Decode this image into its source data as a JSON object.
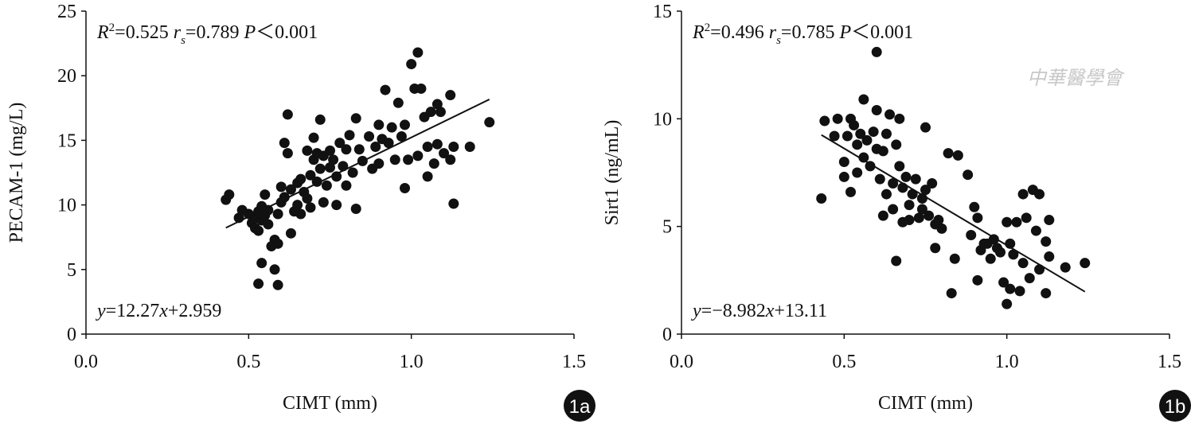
{
  "chart_data": [
    {
      "type": "scatter",
      "xlabel": "CIMT (mm)",
      "ylabel": "PECAM-1 (mg/L)",
      "panel_label": "1a",
      "color": "#111111",
      "stats": [
        "R",
        "2",
        "=0.525 ",
        "r",
        "s",
        "=0.789 ",
        "P",
        "＜0.001"
      ],
      "equation": [
        "y",
        "=12.27",
        "x",
        "+2.959"
      ],
      "fit_line": {
        "x": [
          0.43,
          1.24
        ],
        "y": [
          8.23,
          18.17
        ]
      },
      "xlim": [
        0,
        1.5
      ],
      "ylim": [
        0,
        25
      ],
      "xticks": [
        {
          "value": 0,
          "label": "0.0"
        },
        0.5,
        {
          "value": 1,
          "label": "1.0"
        },
        1.5
      ],
      "yticks": [
        0,
        5,
        10,
        15,
        20,
        25
      ],
      "x": [
        0.43,
        0.44,
        0.47,
        0.48,
        0.5,
        0.51,
        0.52,
        0.52,
        0.53,
        0.53,
        0.54,
        0.54,
        0.55,
        0.55,
        0.56,
        0.56,
        0.57,
        0.58,
        0.58,
        0.53,
        0.54,
        0.59,
        0.59,
        0.59,
        0.6,
        0.6,
        0.61,
        0.61,
        0.62,
        0.62,
        0.63,
        0.63,
        0.64,
        0.65,
        0.65,
        0.66,
        0.66,
        0.67,
        0.68,
        0.68,
        0.69,
        0.69,
        0.7,
        0.7,
        0.71,
        0.71,
        0.72,
        0.72,
        0.73,
        0.73,
        0.74,
        0.75,
        0.75,
        0.76,
        0.77,
        0.77,
        0.78,
        0.79,
        0.8,
        0.8,
        0.81,
        0.82,
        0.83,
        0.83,
        0.84,
        0.85,
        0.87,
        0.88,
        0.89,
        0.9,
        0.9,
        0.91,
        0.92,
        0.93,
        0.94,
        0.95,
        0.96,
        0.97,
        0.98,
        0.98,
        0.99,
        1.0,
        1.01,
        1.02,
        1.02,
        1.03,
        1.04,
        1.05,
        1.05,
        1.06,
        1.07,
        1.08,
        1.08,
        1.09,
        1.1,
        1.12,
        1.12,
        1.13,
        1.13,
        1.18,
        1.24
      ],
      "values": [
        10.4,
        10.8,
        9.0,
        9.6,
        9.3,
        8.6,
        8.2,
        9.0,
        8.0,
        9.5,
        8.8,
        9.9,
        9.2,
        10.8,
        8.5,
        9.6,
        6.8,
        7.3,
        5.0,
        3.9,
        5.5,
        3.8,
        7.0,
        9.3,
        10.2,
        11.4,
        10.6,
        14.8,
        17.0,
        14.0,
        11.2,
        7.8,
        9.5,
        11.7,
        10.0,
        12.0,
        9.3,
        11.0,
        10.5,
        14.2,
        12.3,
        9.8,
        13.5,
        15.2,
        11.8,
        14.0,
        16.6,
        12.8,
        10.2,
        13.8,
        11.5,
        12.9,
        14.2,
        13.5,
        12.2,
        10.0,
        14.8,
        13.0,
        14.3,
        11.5,
        15.4,
        12.5,
        9.7,
        16.7,
        14.3,
        13.4,
        15.3,
        12.8,
        14.5,
        13.2,
        16.2,
        15.1,
        18.9,
        14.8,
        16.0,
        13.5,
        17.9,
        15.3,
        11.3,
        16.2,
        13.5,
        20.9,
        19.0,
        21.8,
        13.8,
        19.0,
        16.8,
        12.2,
        14.5,
        17.2,
        13.2,
        17.8,
        14.7,
        17.2,
        14.0,
        18.5,
        13.5,
        10.1,
        14.5,
        14.5,
        16.4
      ]
    },
    {
      "type": "scatter",
      "xlabel": "CIMT (mm)",
      "ylabel": "Sirt1 (ng/mL)",
      "panel_label": "1b",
      "color": "#111111",
      "watermark": "中華醫學會",
      "stats": [
        "R",
        "2",
        "=0.496 ",
        "r",
        "s",
        "=0.785 ",
        "P",
        "＜0.001"
      ],
      "equation": [
        "y",
        "=−8.982",
        "x",
        "+13.11"
      ],
      "fit_line": {
        "x": [
          0.43,
          1.24
        ],
        "y": [
          9.25,
          1.97
        ]
      },
      "xlim": [
        0,
        1.5
      ],
      "ylim": [
        0,
        15
      ],
      "xticks": [
        {
          "value": 0,
          "label": "0.0"
        },
        0.5,
        {
          "value": 1,
          "label": "1.0"
        },
        1.5
      ],
      "yticks": [
        0,
        5,
        10,
        15
      ],
      "x": [
        0.43,
        0.44,
        0.47,
        0.48,
        0.5,
        0.5,
        0.51,
        0.52,
        0.52,
        0.53,
        0.54,
        0.54,
        0.55,
        0.56,
        0.56,
        0.57,
        0.58,
        0.59,
        0.6,
        0.6,
        0.6,
        0.61,
        0.62,
        0.62,
        0.63,
        0.63,
        0.64,
        0.65,
        0.65,
        0.66,
        0.66,
        0.67,
        0.67,
        0.68,
        0.68,
        0.69,
        0.7,
        0.7,
        0.71,
        0.72,
        0.73,
        0.74,
        0.74,
        0.75,
        0.75,
        0.76,
        0.77,
        0.78,
        0.78,
        0.79,
        0.8,
        0.82,
        0.83,
        0.84,
        0.85,
        0.88,
        0.89,
        0.9,
        0.91,
        0.91,
        0.92,
        0.93,
        0.94,
        0.95,
        0.96,
        0.97,
        0.98,
        0.99,
        1.0,
        1.0,
        1.01,
        1.01,
        1.02,
        1.03,
        1.04,
        1.05,
        1.05,
        1.06,
        1.07,
        1.08,
        1.09,
        1.1,
        1.1,
        1.12,
        1.12,
        1.13,
        1.13,
        1.18,
        1.24
      ],
      "values": [
        6.3,
        9.9,
        9.2,
        10.0,
        7.3,
        8.0,
        9.2,
        10.0,
        6.6,
        9.7,
        8.8,
        7.5,
        9.3,
        10.9,
        8.2,
        9.0,
        7.8,
        9.4,
        10.4,
        13.1,
        8.6,
        7.2,
        5.5,
        8.5,
        6.5,
        9.3,
        10.2,
        7.0,
        5.8,
        8.8,
        3.4,
        7.8,
        10.0,
        6.8,
        5.2,
        7.3,
        6.0,
        5.3,
        6.5,
        7.2,
        5.4,
        6.3,
        5.8,
        9.6,
        6.7,
        5.5,
        7.0,
        4.0,
        5.1,
        5.3,
        4.9,
        8.4,
        1.9,
        3.5,
        8.3,
        7.4,
        4.6,
        5.9,
        5.4,
        2.5,
        3.9,
        4.2,
        4.2,
        3.5,
        4.4,
        4.0,
        3.8,
        2.4,
        5.2,
        1.4,
        4.2,
        2.1,
        3.7,
        5.2,
        2.0,
        6.5,
        3.3,
        5.4,
        2.6,
        6.7,
        4.8,
        6.5,
        3.0,
        1.9,
        4.3,
        3.6,
        5.3,
        3.1,
        3.3
      ]
    }
  ]
}
